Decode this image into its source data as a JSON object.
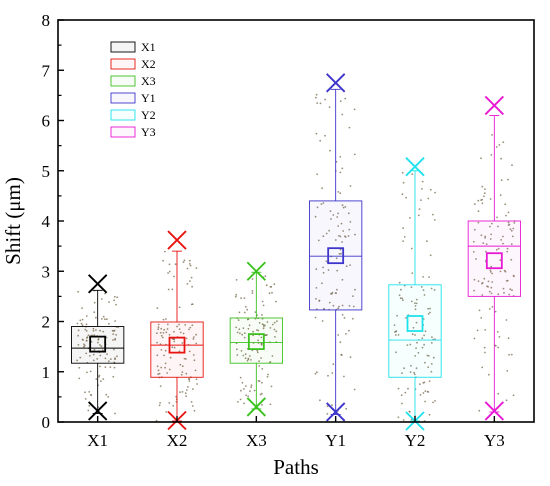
{
  "chart_data": {
    "type": "box",
    "title": "",
    "xlabel": "Paths",
    "ylabel": "Shift (μm)",
    "ylim": [
      0,
      8
    ],
    "yticks": [
      "0",
      "1",
      "2",
      "3",
      "4",
      "5",
      "6",
      "7",
      "8"
    ],
    "categories": [
      "X1",
      "X2",
      "X3",
      "Y1",
      "Y2",
      "Y3"
    ],
    "legend": {
      "placement": "top-left",
      "entries": [
        "X1",
        "X2",
        "X3",
        "Y1",
        "Y2",
        "Y3"
      ]
    },
    "colors": [
      "#000000",
      "#e8130f",
      "#3cc21e",
      "#3d35cc",
      "#1ee3ec",
      "#e719d4"
    ],
    "boxes": [
      {
        "name": "X1",
        "q1": 1.17,
        "median": 1.47,
        "q3": 1.9,
        "mean": 1.55,
        "whisker_low": 0.17,
        "whisker_high": 2.62,
        "min": 0.22,
        "max": 2.75
      },
      {
        "name": "X2",
        "q1": 0.89,
        "median": 1.53,
        "q3": 1.99,
        "mean": 1.53,
        "whisker_low": 0.02,
        "whisker_high": 3.4,
        "min": 0.03,
        "max": 3.62
      },
      {
        "name": "X3",
        "q1": 1.17,
        "median": 1.58,
        "q3": 2.07,
        "mean": 1.6,
        "whisker_low": 0.26,
        "whisker_high": 2.98,
        "min": 0.3,
        "max": 3.0
      },
      {
        "name": "Y1",
        "q1": 2.23,
        "median": 3.3,
        "q3": 4.4,
        "mean": 3.31,
        "whisker_low": 0.15,
        "whisker_high": 6.62,
        "min": 0.2,
        "max": 6.75
      },
      {
        "name": "Y2",
        "q1": 0.89,
        "median": 1.63,
        "q3": 2.73,
        "mean": 1.96,
        "whisker_low": 0.02,
        "whisker_high": 5.0,
        "min": 0.02,
        "max": 5.08
      },
      {
        "name": "Y3",
        "q1": 2.5,
        "median": 3.5,
        "q3": 4.0,
        "mean": 3.21,
        "whisker_low": 0.2,
        "whisker_high": 6.1,
        "min": 0.22,
        "max": 6.3
      }
    ]
  }
}
